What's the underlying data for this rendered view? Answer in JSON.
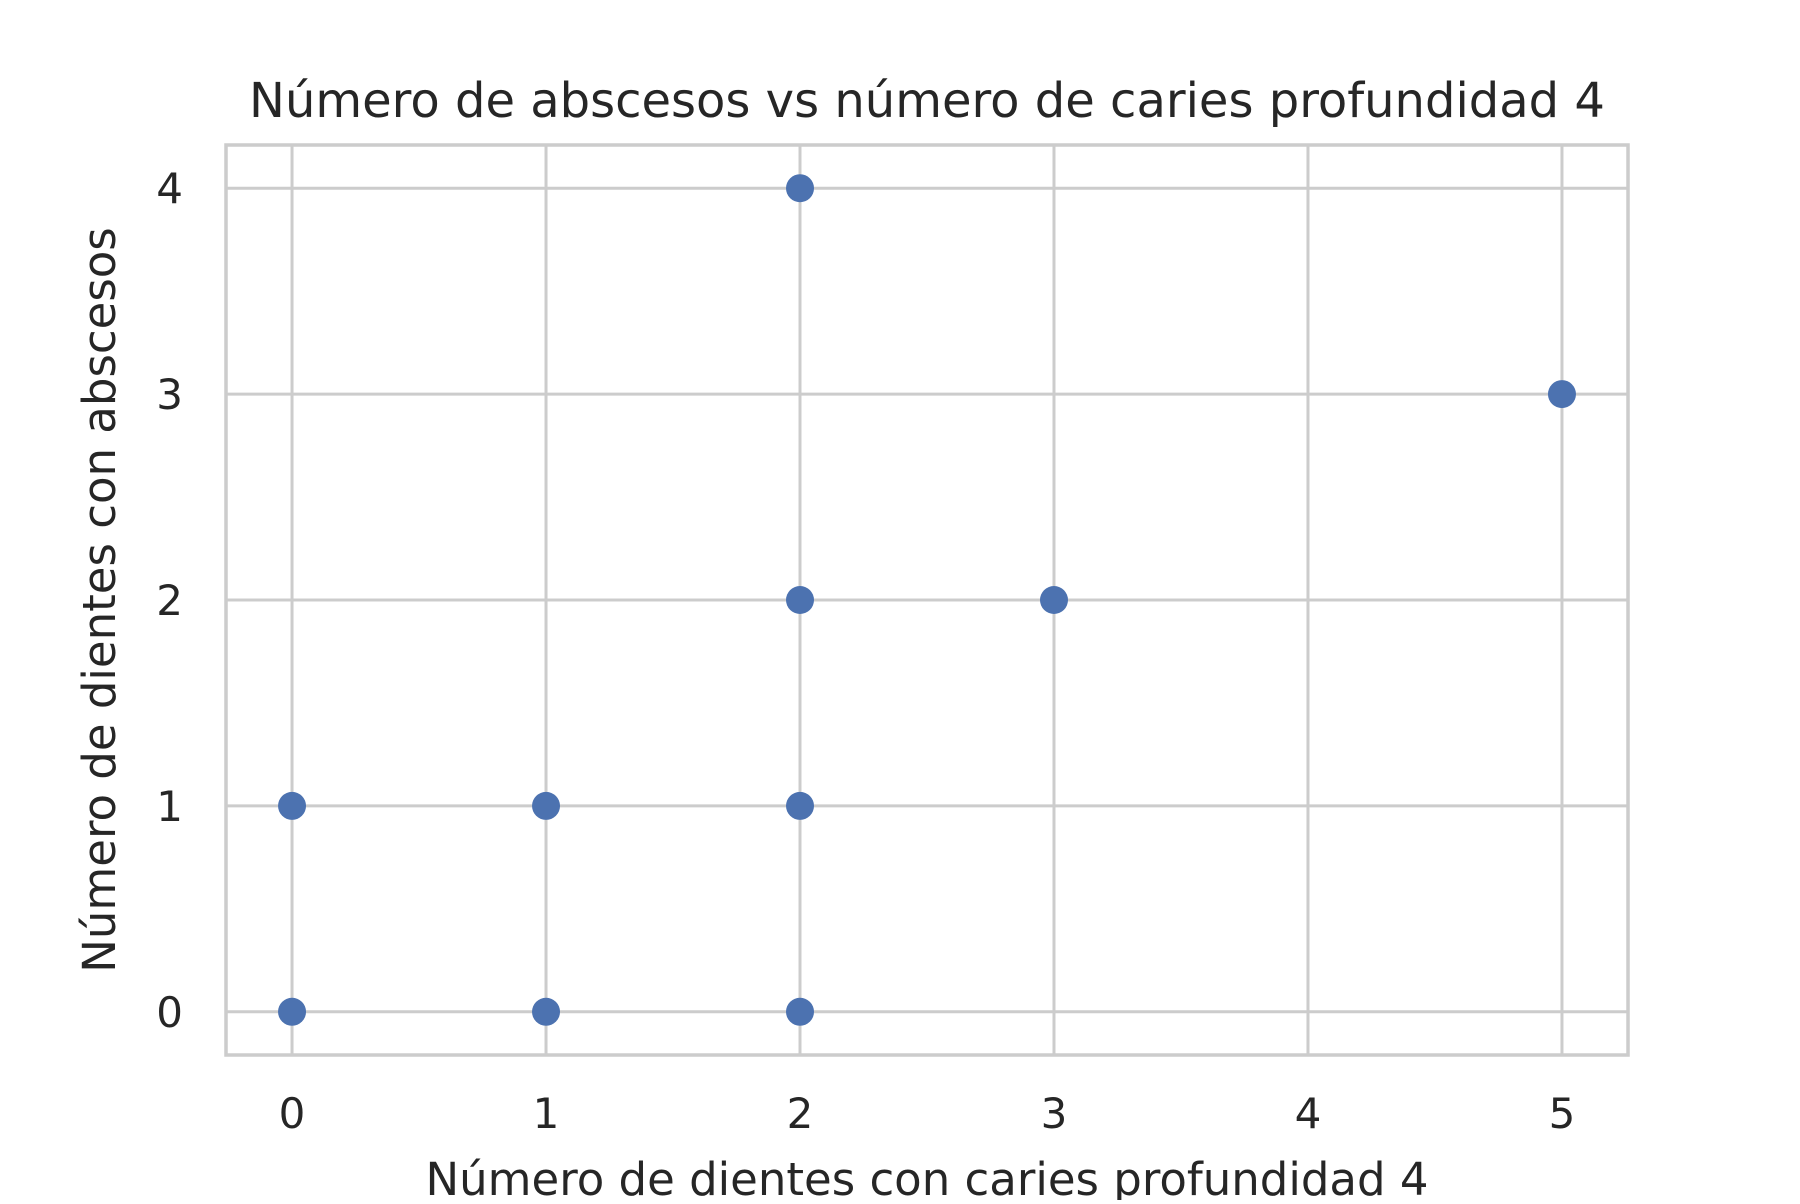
{
  "chart_data": {
    "type": "scatter",
    "title": "Número de abscesos vs número de caries profundidad 4",
    "xlabel": "Número de dientes con caries profundidad 4",
    "ylabel": "Número de dientes con abscesos",
    "xlim": [
      -0.26,
      5.26
    ],
    "ylim": [
      -0.21,
      4.21
    ],
    "xticks": [
      0,
      1,
      2,
      3,
      4,
      5
    ],
    "yticks": [
      0,
      1,
      2,
      3,
      4
    ],
    "grid": true,
    "legend": "none",
    "colors": {
      "points": "#4c72b0",
      "grid": "#cccccc",
      "text": "#262626"
    },
    "points": [
      {
        "x": 0,
        "y": 0
      },
      {
        "x": 0,
        "y": 1
      },
      {
        "x": 1,
        "y": 0
      },
      {
        "x": 1,
        "y": 1
      },
      {
        "x": 2,
        "y": 0
      },
      {
        "x": 2,
        "y": 1
      },
      {
        "x": 2,
        "y": 2
      },
      {
        "x": 2,
        "y": 4
      },
      {
        "x": 3,
        "y": 2
      },
      {
        "x": 5,
        "y": 3
      }
    ]
  }
}
